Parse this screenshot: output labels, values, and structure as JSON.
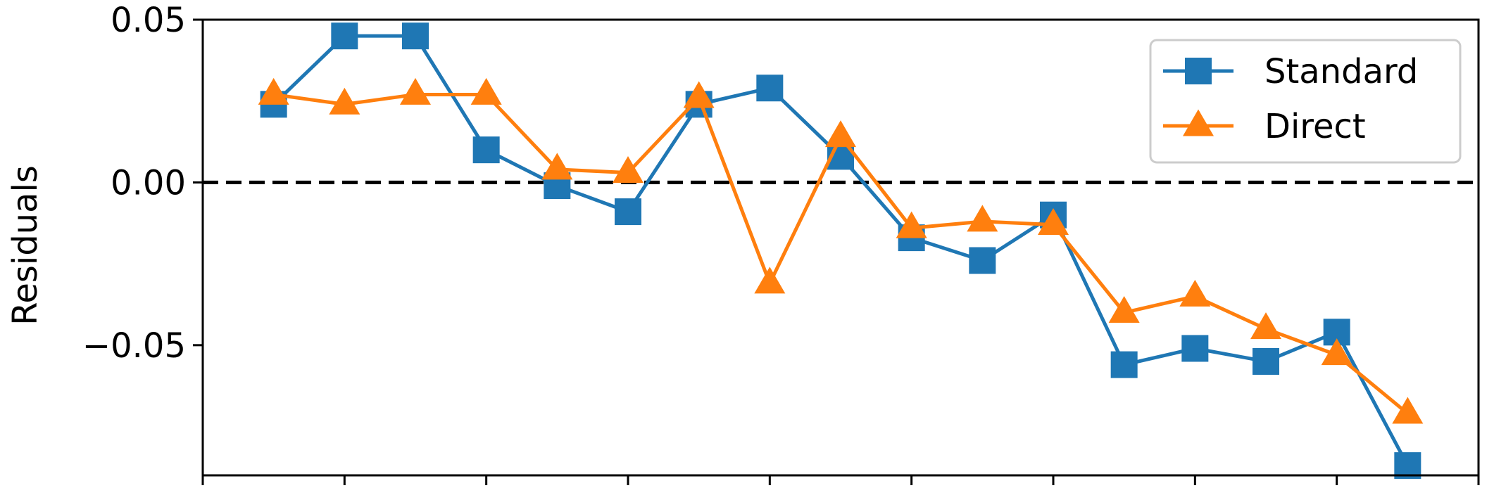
{
  "chart_data": {
    "type": "line",
    "title": "",
    "xlabel": "",
    "ylabel": "Residuals",
    "ylim": [
      -0.09,
      0.05
    ],
    "xlim": [
      0,
      18
    ],
    "yticks": [
      0.05,
      0.0,
      -0.05
    ],
    "ytick_labels": [
      "0.05",
      "0.00",
      "−0.05"
    ],
    "xticks": [
      0,
      2,
      4,
      6,
      8,
      10,
      12,
      14,
      16,
      18
    ],
    "zero_line": {
      "y": 0,
      "style": "dashed",
      "color": "#000000"
    },
    "x": [
      1,
      2,
      3,
      4,
      5,
      6,
      7,
      8,
      9,
      10,
      11,
      12,
      13,
      14,
      15,
      16,
      17
    ],
    "series": [
      {
        "name": "Standard",
        "color": "#1f77b4",
        "marker": "square",
        "values": [
          0.024,
          0.045,
          0.045,
          0.01,
          -0.001,
          -0.009,
          0.024,
          0.029,
          0.008,
          -0.017,
          -0.024,
          -0.01,
          -0.056,
          -0.051,
          -0.055,
          -0.046,
          -0.087
        ]
      },
      {
        "name": "Direct",
        "color": "#ff7f0e",
        "marker": "triangle",
        "values": [
          0.027,
          0.024,
          0.027,
          0.027,
          0.004,
          0.003,
          0.026,
          -0.031,
          0.014,
          -0.014,
          -0.012,
          -0.013,
          -0.04,
          -0.035,
          -0.045,
          -0.053,
          -0.071
        ]
      }
    ],
    "legend": {
      "position": "top-right"
    },
    "grid": false
  }
}
